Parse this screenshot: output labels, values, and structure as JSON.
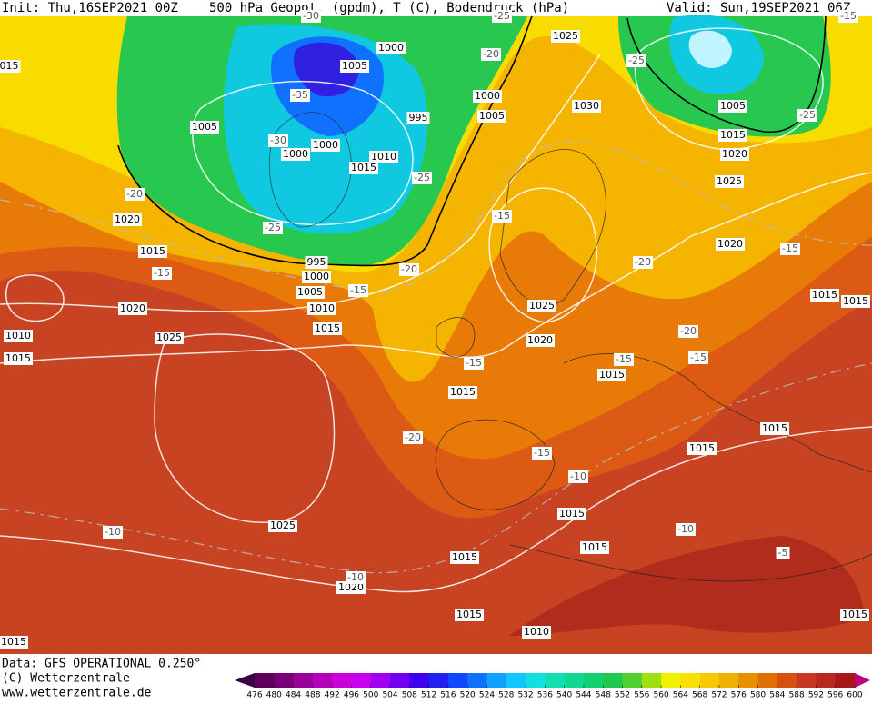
{
  "header": {
    "init": "Init: Thu,16SEP2021 00Z",
    "title": "500 hPa Geopot. (gpdm), T (C), Bodendruck (hPa)",
    "valid": "Valid: Sun,19SEP2021 06Z"
  },
  "footer": {
    "data": "Data: GFS OPERATIONAL 0.250°",
    "copyright": "(C) Wetterzentrale",
    "url": "www.wetterzentrale.de"
  },
  "map": {
    "isobar_labels": [
      "1000",
      "1005",
      "1000",
      "1005",
      "995",
      "1005",
      "1000",
      "1000",
      "1010",
      "1015",
      "1025",
      "1030",
      "1005",
      "1015",
      "1020",
      "1025",
      "1020",
      "1015",
      "1020",
      "995",
      "1000",
      "1005",
      "1010",
      "1015",
      "1020",
      "1010",
      "1015",
      "1025",
      "1025",
      "1020",
      "1015",
      "1015",
      "1015",
      "1015",
      "1015",
      "1015",
      "1015",
      "1015",
      "1015",
      "1025",
      "1020",
      "1015",
      "1010",
      "1015",
      "1015",
      "015"
    ],
    "temperature_labels": [
      "-20",
      "-25",
      "-35",
      "-30",
      "-25",
      "-20",
      "-25",
      "-15",
      "-15",
      "-20",
      "-15",
      "-20",
      "-15",
      "-25",
      "-20",
      "-15",
      "-15",
      "-15",
      "-20",
      "-15",
      "-10",
      "-10",
      "-10",
      "-10",
      "-5",
      "-30",
      "-25",
      "-15"
    ],
    "colorbar": {
      "ticks": [
        476,
        480,
        484,
        488,
        492,
        496,
        500,
        504,
        508,
        512,
        516,
        520,
        524,
        528,
        532,
        536,
        540,
        544,
        548,
        552,
        556,
        560,
        564,
        568,
        572,
        576,
        580,
        584,
        588,
        592,
        596,
        600
      ],
      "colors": [
        "#3a0048",
        "#5c005c",
        "#7a007a",
        "#98009a",
        "#b400b8",
        "#cc00d8",
        "#c800f0",
        "#a000f0",
        "#7000f0",
        "#4000f0",
        "#2020f0",
        "#1048ff",
        "#1070ff",
        "#10a0ff",
        "#10c8ff",
        "#10e0e0",
        "#10e0b0",
        "#10d890",
        "#10d070",
        "#20c850",
        "#50d030",
        "#a0e010",
        "#f0f000",
        "#f8e000",
        "#f8c800",
        "#f0b000",
        "#e89000",
        "#e07000",
        "#d85010",
        "#c83820",
        "#b82820",
        "#a81818",
        "#c00080"
      ]
    }
  }
}
